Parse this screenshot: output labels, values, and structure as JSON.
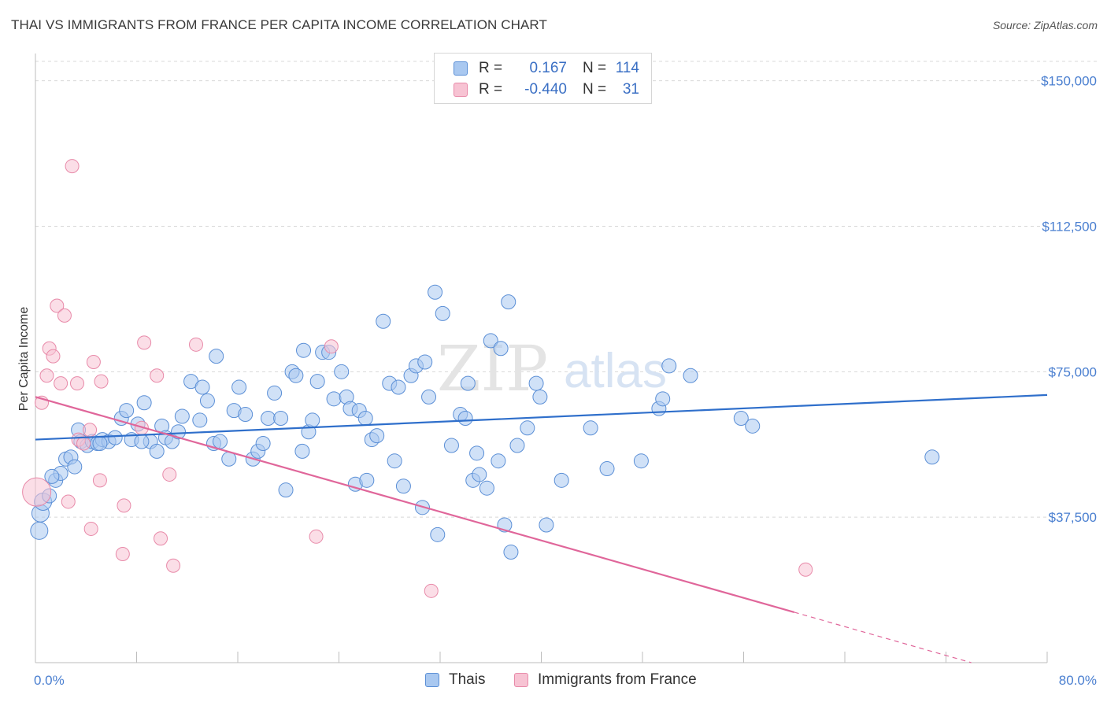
{
  "header": {
    "title": "THAI VS IMMIGRANTS FROM FRANCE PER CAPITA INCOME CORRELATION CHART",
    "source": "Source: ZipAtlas.com"
  },
  "watermark": {
    "zip": "ZIP",
    "atlas": "atlas"
  },
  "legend": {
    "rows": [
      {
        "r_label": "R =",
        "r_value": "0.167",
        "n_label": "N =",
        "n_value": "114"
      },
      {
        "r_label": "R =",
        "r_value": "-0.440",
        "n_label": "N =",
        "n_value": "31"
      }
    ]
  },
  "bottom_legend": {
    "series1": "Thais",
    "series2": "Immigrants from France"
  },
  "colors": {
    "thais_fill": "#a9c8f0",
    "thais_stroke": "#5b8fd6",
    "thais_line": "#2f6fcb",
    "france_fill": "#f7c3d3",
    "france_stroke": "#e88aa9",
    "france_line": "#e0669a",
    "grid": "#d8d8d8",
    "axis_label": "#4a7fd0"
  },
  "chart_data": {
    "type": "scatter",
    "title": "THAI VS IMMIGRANTS FROM FRANCE PER CAPITA INCOME CORRELATION CHART",
    "xlabel": "",
    "ylabel": "Per Capita Income",
    "x_tick_labels": [
      "0.0%",
      "80.0%"
    ],
    "y_tick_labels": [
      "$37,500",
      "$75,000",
      "$112,500",
      "$150,000"
    ],
    "y_ticks": [
      37500,
      75000,
      112500,
      150000
    ],
    "xlim": [
      0,
      80
    ],
    "ylim": [
      0,
      155000
    ],
    "grid": "horizontal dashed",
    "series": [
      {
        "name": "Thais",
        "r": 0.167,
        "n": 114,
        "trend": {
          "x": [
            0,
            80
          ],
          "y": [
            57500,
            69000
          ]
        },
        "points": [
          [
            0.3,
            34000
          ],
          [
            0.4,
            38500
          ],
          [
            0.6,
            41500
          ],
          [
            1.1,
            43000
          ],
          [
            1.6,
            47000
          ],
          [
            2.0,
            48800
          ],
          [
            2.4,
            52500
          ],
          [
            2.8,
            53000
          ],
          [
            3.1,
            50500
          ],
          [
            3.4,
            60000
          ],
          [
            3.6,
            57000
          ],
          [
            4.1,
            56000
          ],
          [
            4.5,
            57000
          ],
          [
            4.9,
            56500
          ],
          [
            5.3,
            57500
          ],
          [
            5.8,
            57000
          ],
          [
            6.3,
            58000
          ],
          [
            6.8,
            63000
          ],
          [
            7.2,
            65000
          ],
          [
            7.6,
            57500
          ],
          [
            8.1,
            61500
          ],
          [
            8.6,
            67000
          ],
          [
            9.1,
            57000
          ],
          [
            9.6,
            54500
          ],
          [
            10.0,
            61000
          ],
          [
            10.3,
            58000
          ],
          [
            10.8,
            57000
          ],
          [
            11.3,
            59500
          ],
          [
            11.6,
            63500
          ],
          [
            12.3,
            72500
          ],
          [
            13.2,
            71000
          ],
          [
            13.6,
            67500
          ],
          [
            14.1,
            56500
          ],
          [
            14.6,
            57000
          ],
          [
            14.3,
            79000
          ],
          [
            15.3,
            52500
          ],
          [
            15.7,
            65000
          ],
          [
            16.1,
            71000
          ],
          [
            16.6,
            64000
          ],
          [
            17.2,
            52500
          ],
          [
            17.6,
            54500
          ],
          [
            18.0,
            56500
          ],
          [
            18.4,
            63000
          ],
          [
            18.9,
            69500
          ],
          [
            19.4,
            63000
          ],
          [
            19.8,
            44500
          ],
          [
            20.3,
            75000
          ],
          [
            20.6,
            74000
          ],
          [
            21.1,
            54500
          ],
          [
            21.6,
            59500
          ],
          [
            21.9,
            62500
          ],
          [
            22.3,
            72500
          ],
          [
            22.7,
            80000
          ],
          [
            23.2,
            80000
          ],
          [
            23.6,
            68000
          ],
          [
            24.2,
            75000
          ],
          [
            24.6,
            68500
          ],
          [
            24.9,
            65500
          ],
          [
            25.3,
            46000
          ],
          [
            25.6,
            65000
          ],
          [
            26.1,
            63000
          ],
          [
            26.6,
            57500
          ],
          [
            27.0,
            58500
          ],
          [
            27.5,
            88000
          ],
          [
            28.0,
            72000
          ],
          [
            28.4,
            52000
          ],
          [
            28.7,
            71000
          ],
          [
            29.1,
            45500
          ],
          [
            29.7,
            74000
          ],
          [
            30.1,
            76500
          ],
          [
            30.6,
            40000
          ],
          [
            30.8,
            77500
          ],
          [
            31.1,
            68500
          ],
          [
            31.6,
            95500
          ],
          [
            31.8,
            33000
          ],
          [
            32.2,
            90000
          ],
          [
            32.9,
            56000
          ],
          [
            33.6,
            64000
          ],
          [
            34.0,
            63000
          ],
          [
            34.2,
            72000
          ],
          [
            34.6,
            47000
          ],
          [
            34.9,
            54000
          ],
          [
            35.1,
            48500
          ],
          [
            35.7,
            45000
          ],
          [
            36.0,
            83000
          ],
          [
            36.6,
            52000
          ],
          [
            36.8,
            81000
          ],
          [
            37.1,
            35500
          ],
          [
            37.4,
            93000
          ],
          [
            37.6,
            28500
          ],
          [
            38.1,
            56000
          ],
          [
            38.9,
            60500
          ],
          [
            39.6,
            72000
          ],
          [
            39.9,
            68500
          ],
          [
            40.4,
            35500
          ],
          [
            41.6,
            47000
          ],
          [
            43.9,
            60500
          ],
          [
            45.2,
            50000
          ],
          [
            47.9,
            52000
          ],
          [
            49.3,
            65500
          ],
          [
            49.6,
            68000
          ],
          [
            50.1,
            76500
          ],
          [
            51.8,
            74000
          ],
          [
            55.8,
            63000
          ],
          [
            56.7,
            61000
          ],
          [
            70.9,
            53000
          ],
          [
            21.2,
            80500
          ],
          [
            8.4,
            57000
          ],
          [
            13.0,
            62500
          ],
          [
            26.2,
            47000
          ],
          [
            5.1,
            56500
          ],
          [
            1.3,
            48000
          ]
        ]
      },
      {
        "name": "Immigrants from France",
        "r": -0.44,
        "n": 31,
        "trend": {
          "x": [
            0,
            60
          ],
          "y": [
            68500,
            13000
          ]
        },
        "trend_dashed": {
          "x": [
            60,
            74
          ],
          "y": [
            13000,
            0
          ]
        },
        "points": [
          [
            0.1,
            44000
          ],
          [
            0.5,
            67000
          ],
          [
            0.9,
            74000
          ],
          [
            1.1,
            81000
          ],
          [
            1.4,
            79000
          ],
          [
            1.7,
            92000
          ],
          [
            2.0,
            72000
          ],
          [
            2.3,
            89500
          ],
          [
            2.6,
            41500
          ],
          [
            2.9,
            128000
          ],
          [
            3.4,
            57500
          ],
          [
            3.8,
            56500
          ],
          [
            4.3,
            60000
          ],
          [
            4.4,
            34500
          ],
          [
            4.6,
            77500
          ],
          [
            5.1,
            47000
          ],
          [
            5.2,
            72500
          ],
          [
            6.9,
            28000
          ],
          [
            7.0,
            40500
          ],
          [
            8.4,
            60500
          ],
          [
            8.6,
            82500
          ],
          [
            9.6,
            74000
          ],
          [
            9.9,
            32000
          ],
          [
            10.6,
            48500
          ],
          [
            10.9,
            25000
          ],
          [
            12.7,
            82000
          ],
          [
            22.2,
            32500
          ],
          [
            23.4,
            81500
          ],
          [
            31.3,
            18500
          ],
          [
            60.9,
            24000
          ],
          [
            3.3,
            72000
          ]
        ]
      }
    ]
  }
}
